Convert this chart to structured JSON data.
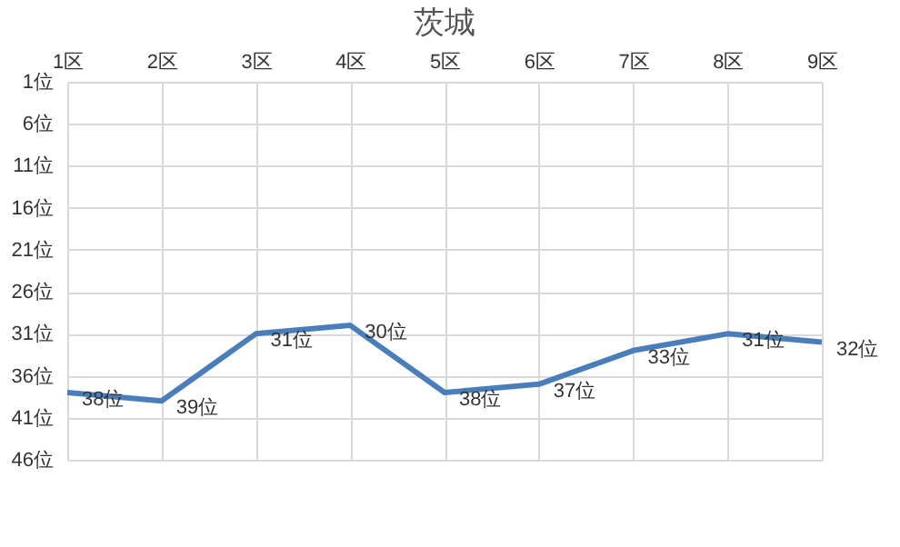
{
  "chart_data": {
    "type": "line",
    "title": "茨城",
    "categories": [
      "1区",
      "2区",
      "3区",
      "4区",
      "5区",
      "6区",
      "7区",
      "8区",
      "9区"
    ],
    "series": [
      {
        "color": "#4a7ebb",
        "values": [
          38,
          39,
          31,
          30,
          38,
          37,
          33,
          31,
          32
        ],
        "value_labels": [
          "38位",
          "39位",
          "31位",
          "30位",
          "38位",
          "37位",
          "33位",
          "31位",
          "32位"
        ]
      }
    ],
    "ylim": [
      46,
      1
    ],
    "yticks": [
      {
        "value": 1,
        "label": "1位"
      },
      {
        "value": 6,
        "label": "6位"
      },
      {
        "value": 11,
        "label": "11位"
      },
      {
        "value": 16,
        "label": "16位"
      },
      {
        "value": 21,
        "label": "21位"
      },
      {
        "value": 26,
        "label": "26位"
      },
      {
        "value": 31,
        "label": "31位"
      },
      {
        "value": 36,
        "label": "36位"
      },
      {
        "value": 41,
        "label": "41位"
      },
      {
        "value": 46,
        "label": "46位"
      }
    ],
    "grid": true,
    "marker": "none",
    "line_style": "solid"
  }
}
